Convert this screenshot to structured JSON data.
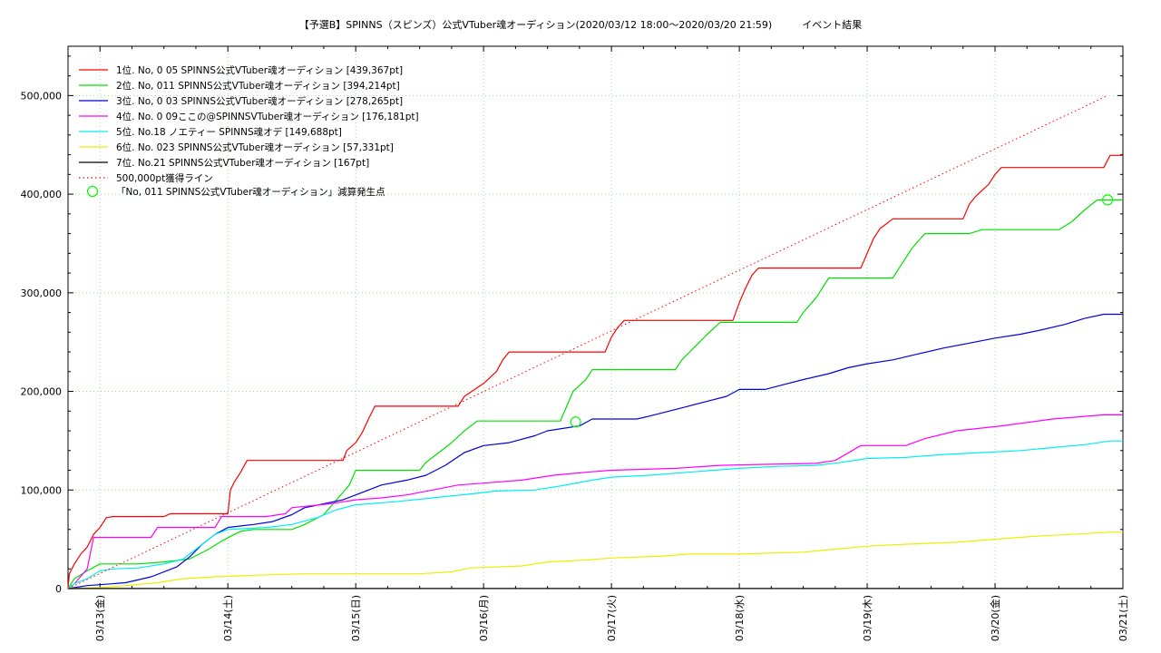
{
  "chart_data": {
    "type": "line",
    "title": "【予選B】SPINNS（スピンズ）公式VTuber魂オーディション(2020/03/12 18:00〜2020/03/20 21:59)　　　イベント結果",
    "xlabel": "",
    "ylabel": "",
    "x_ticks": [
      "03/13(金)",
      "03/14(土)",
      "03/15(日)",
      "03/16(月)",
      "03/17(火)",
      "03/18(水)",
      "03/19(木)",
      "03/20(金)",
      "03/21(土)"
    ],
    "y_ticks": [
      "0",
      "100,000",
      "200,000",
      "300,000",
      "400,000",
      "500,000"
    ],
    "x_range_days": [
      -0.25,
      8.0
    ],
    "ylim": [
      0,
      550000
    ],
    "grid": true,
    "legend_position": "top-left",
    "series": [
      {
        "name": "1位. No, 0 05 SPINNS公式VTuber魂オーディション [439,367pt]",
        "color": "#ff0000",
        "points": [
          [
            -0.25,
            0
          ],
          [
            -0.24,
            15000
          ],
          [
            -0.2,
            25000
          ],
          [
            -0.15,
            35000
          ],
          [
            -0.1,
            42000
          ],
          [
            -0.05,
            55000
          ],
          [
            0.0,
            62000
          ],
          [
            0.05,
            72000
          ],
          [
            0.1,
            73000
          ],
          [
            0.5,
            73000
          ],
          [
            0.55,
            76000
          ],
          [
            1.0,
            76000
          ],
          [
            1.02,
            100000
          ],
          [
            1.05,
            108000
          ],
          [
            1.1,
            118000
          ],
          [
            1.15,
            130000
          ],
          [
            1.5,
            130000
          ],
          [
            1.9,
            130000
          ],
          [
            1.93,
            140000
          ],
          [
            2.0,
            148000
          ],
          [
            2.05,
            158000
          ],
          [
            2.1,
            172000
          ],
          [
            2.15,
            185000
          ],
          [
            2.5,
            185000
          ],
          [
            2.8,
            185000
          ],
          [
            2.85,
            195000
          ],
          [
            3.0,
            208000
          ],
          [
            3.1,
            220000
          ],
          [
            3.15,
            232000
          ],
          [
            3.2,
            240000
          ],
          [
            3.6,
            240000
          ],
          [
            3.95,
            240000
          ],
          [
            4.0,
            255000
          ],
          [
            4.05,
            265000
          ],
          [
            4.1,
            272000
          ],
          [
            4.5,
            272000
          ],
          [
            4.95,
            272000
          ],
          [
            5.0,
            290000
          ],
          [
            5.05,
            305000
          ],
          [
            5.1,
            318000
          ],
          [
            5.15,
            325000
          ],
          [
            5.5,
            325000
          ],
          [
            5.95,
            325000
          ],
          [
            6.0,
            340000
          ],
          [
            6.05,
            355000
          ],
          [
            6.1,
            365000
          ],
          [
            6.2,
            375000
          ],
          [
            6.5,
            375000
          ],
          [
            6.75,
            375000
          ],
          [
            6.8,
            390000
          ],
          [
            6.85,
            398000
          ],
          [
            6.95,
            410000
          ],
          [
            7.0,
            420000
          ],
          [
            7.05,
            427000
          ],
          [
            7.5,
            427000
          ],
          [
            7.85,
            427000
          ],
          [
            7.9,
            439367
          ],
          [
            8.0,
            439367
          ]
        ]
      },
      {
        "name": "2位. No, 011 SPINNS公式VTuber魂オーディション [394,214pt]",
        "color": "#00e000",
        "points": [
          [
            -0.25,
            0
          ],
          [
            -0.2,
            10000
          ],
          [
            -0.1,
            18000
          ],
          [
            0.0,
            25000
          ],
          [
            0.3,
            25000
          ],
          [
            0.5,
            27000
          ],
          [
            0.7,
            30000
          ],
          [
            0.85,
            40000
          ],
          [
            0.95,
            48000
          ],
          [
            1.05,
            55000
          ],
          [
            1.1,
            58000
          ],
          [
            1.2,
            60000
          ],
          [
            1.5,
            60000
          ],
          [
            1.6,
            65000
          ],
          [
            1.75,
            75000
          ],
          [
            1.85,
            90000
          ],
          [
            1.95,
            105000
          ],
          [
            2.0,
            120000
          ],
          [
            2.4,
            120000
          ],
          [
            2.5,
            120000
          ],
          [
            2.55,
            128000
          ],
          [
            2.65,
            138000
          ],
          [
            2.75,
            148000
          ],
          [
            2.85,
            160000
          ],
          [
            2.95,
            170000
          ],
          [
            3.3,
            170000
          ],
          [
            3.6,
            170000
          ],
          [
            3.65,
            185000
          ],
          [
            3.7,
            200000
          ],
          [
            3.8,
            212000
          ],
          [
            3.85,
            222000
          ],
          [
            4.2,
            222000
          ],
          [
            4.5,
            222000
          ],
          [
            4.55,
            232000
          ],
          [
            4.65,
            245000
          ],
          [
            4.75,
            258000
          ],
          [
            4.85,
            270000
          ],
          [
            5.2,
            270000
          ],
          [
            5.45,
            270000
          ],
          [
            5.5,
            280000
          ],
          [
            5.6,
            295000
          ],
          [
            5.7,
            315000
          ],
          [
            6.0,
            315000
          ],
          [
            6.2,
            315000
          ],
          [
            6.25,
            325000
          ],
          [
            6.35,
            345000
          ],
          [
            6.45,
            360000
          ],
          [
            6.8,
            360000
          ],
          [
            6.9,
            364000
          ],
          [
            7.3,
            364000
          ],
          [
            7.5,
            364000
          ],
          [
            7.6,
            372000
          ],
          [
            7.7,
            384000
          ],
          [
            7.8,
            394214
          ],
          [
            8.0,
            394214
          ]
        ]
      },
      {
        "name": "3位. No, 0 03 SPINNS公式VTuber魂オーディション [278,265pt]",
        "color": "#0000dd",
        "points": [
          [
            -0.25,
            0
          ],
          [
            -0.1,
            3000
          ],
          [
            0.0,
            4000
          ],
          [
            0.2,
            6000
          ],
          [
            0.4,
            12000
          ],
          [
            0.6,
            22000
          ],
          [
            0.7,
            32000
          ],
          [
            0.8,
            45000
          ],
          [
            0.9,
            55000
          ],
          [
            1.0,
            62000
          ],
          [
            1.2,
            65000
          ],
          [
            1.35,
            68000
          ],
          [
            1.5,
            75000
          ],
          [
            1.6,
            82000
          ],
          [
            1.75,
            86000
          ],
          [
            1.9,
            90000
          ],
          [
            2.0,
            95000
          ],
          [
            2.1,
            100000
          ],
          [
            2.2,
            105000
          ],
          [
            2.4,
            110000
          ],
          [
            2.55,
            115000
          ],
          [
            2.7,
            125000
          ],
          [
            2.85,
            138000
          ],
          [
            3.0,
            145000
          ],
          [
            3.2,
            148000
          ],
          [
            3.4,
            155000
          ],
          [
            3.5,
            160000
          ],
          [
            3.75,
            165000
          ],
          [
            3.85,
            172000
          ],
          [
            4.1,
            172000
          ],
          [
            4.2,
            172000
          ],
          [
            4.3,
            175000
          ],
          [
            4.45,
            180000
          ],
          [
            4.6,
            185000
          ],
          [
            4.75,
            190000
          ],
          [
            4.9,
            195000
          ],
          [
            5.0,
            202000
          ],
          [
            5.2,
            202000
          ],
          [
            5.35,
            207000
          ],
          [
            5.5,
            212000
          ],
          [
            5.7,
            218000
          ],
          [
            5.85,
            224000
          ],
          [
            6.0,
            228000
          ],
          [
            6.2,
            232000
          ],
          [
            6.4,
            238000
          ],
          [
            6.6,
            244000
          ],
          [
            6.8,
            249000
          ],
          [
            7.0,
            254000
          ],
          [
            7.2,
            258000
          ],
          [
            7.35,
            262000
          ],
          [
            7.55,
            268000
          ],
          [
            7.7,
            274000
          ],
          [
            7.85,
            278265
          ],
          [
            8.0,
            278265
          ]
        ]
      },
      {
        "name": "4位. No. 0 09ここの@SPINNSVTuber魂オーディション [176,181pt]",
        "color": "#ff00ff",
        "points": [
          [
            -0.25,
            0
          ],
          [
            -0.2,
            5000
          ],
          [
            -0.1,
            20000
          ],
          [
            -0.05,
            52000
          ],
          [
            0.2,
            52000
          ],
          [
            0.4,
            52000
          ],
          [
            0.45,
            62000
          ],
          [
            0.9,
            62000
          ],
          [
            0.95,
            73000
          ],
          [
            1.3,
            73000
          ],
          [
            1.45,
            76000
          ],
          [
            1.5,
            82000
          ],
          [
            1.8,
            86000
          ],
          [
            2.0,
            90000
          ],
          [
            2.2,
            92000
          ],
          [
            2.4,
            95000
          ],
          [
            2.6,
            100000
          ],
          [
            2.8,
            105000
          ],
          [
            3.0,
            107000
          ],
          [
            3.3,
            110000
          ],
          [
            3.55,
            115000
          ],
          [
            3.8,
            118000
          ],
          [
            4.0,
            120000
          ],
          [
            4.5,
            122000
          ],
          [
            4.85,
            125000
          ],
          [
            5.2,
            126000
          ],
          [
            5.6,
            127000
          ],
          [
            5.75,
            130000
          ],
          [
            5.95,
            145000
          ],
          [
            6.3,
            145000
          ],
          [
            6.45,
            152000
          ],
          [
            6.7,
            160000
          ],
          [
            7.05,
            165000
          ],
          [
            7.45,
            172000
          ],
          [
            7.85,
            176181
          ],
          [
            8.0,
            176181
          ]
        ]
      },
      {
        "name": "5位. No.18 ノエティー SPINNS魂オデ [149,688pt]",
        "color": "#00eeee",
        "points": [
          [
            -0.25,
            0
          ],
          [
            -0.2,
            5000
          ],
          [
            -0.1,
            10000
          ],
          [
            0.0,
            18000
          ],
          [
            0.1,
            20000
          ],
          [
            0.3,
            21000
          ],
          [
            0.5,
            25000
          ],
          [
            0.65,
            30000
          ],
          [
            0.8,
            45000
          ],
          [
            0.9,
            55000
          ],
          [
            1.0,
            60000
          ],
          [
            1.3,
            62000
          ],
          [
            1.5,
            65000
          ],
          [
            1.7,
            72000
          ],
          [
            1.85,
            80000
          ],
          [
            2.0,
            85000
          ],
          [
            2.3,
            88000
          ],
          [
            2.6,
            92000
          ],
          [
            2.9,
            96000
          ],
          [
            3.1,
            99000
          ],
          [
            3.4,
            100000
          ],
          [
            3.6,
            104000
          ],
          [
            3.85,
            110000
          ],
          [
            4.0,
            113000
          ],
          [
            4.3,
            115000
          ],
          [
            4.6,
            118000
          ],
          [
            4.8,
            120000
          ],
          [
            5.0,
            122000
          ],
          [
            5.3,
            124000
          ],
          [
            5.6,
            125000
          ],
          [
            5.8,
            128000
          ],
          [
            6.0,
            132000
          ],
          [
            6.3,
            133000
          ],
          [
            6.6,
            136000
          ],
          [
            6.9,
            138000
          ],
          [
            7.2,
            140000
          ],
          [
            7.45,
            143000
          ],
          [
            7.7,
            146000
          ],
          [
            7.9,
            149688
          ],
          [
            8.0,
            149688
          ]
        ]
      },
      {
        "name": "6位. No. 023 SPINNS公式VTuber魂オーディション [57,331pt]",
        "color": "#eeee00",
        "points": [
          [
            -0.25,
            0
          ],
          [
            0.0,
            1000
          ],
          [
            0.2,
            3000
          ],
          [
            0.45,
            6000
          ],
          [
            0.65,
            10000
          ],
          [
            0.9,
            12000
          ],
          [
            1.3,
            14000
          ],
          [
            1.6,
            15000
          ],
          [
            2.5,
            15000
          ],
          [
            2.75,
            17000
          ],
          [
            2.9,
            21000
          ],
          [
            3.3,
            23000
          ],
          [
            3.5,
            27000
          ],
          [
            3.8,
            29000
          ],
          [
            4.0,
            31000
          ],
          [
            4.4,
            33000
          ],
          [
            4.6,
            35000
          ],
          [
            5.0,
            35000
          ],
          [
            5.5,
            37000
          ],
          [
            5.75,
            40000
          ],
          [
            6.0,
            43000
          ],
          [
            6.3,
            45000
          ],
          [
            6.7,
            47000
          ],
          [
            7.0,
            50000
          ],
          [
            7.3,
            53000
          ],
          [
            7.6,
            55000
          ],
          [
            7.9,
            57331
          ],
          [
            8.0,
            57331
          ]
        ]
      },
      {
        "name": "7位. No.21 SPINNS公式VTuber魂オーディション [167pt]",
        "color": "#000000",
        "points": [
          [
            -0.25,
            0
          ],
          [
            -0.15,
            100
          ],
          [
            8.0,
            167
          ]
        ]
      },
      {
        "name": "500,000pt獲得ライン",
        "color": "#ff0000",
        "dashed": true,
        "points": [
          [
            -0.25,
            0
          ],
          [
            7.88,
            500000
          ]
        ]
      }
    ],
    "annotations": {
      "decrease_marker_label": "「No, 011 SPINNS公式VTuber魂オーディション」減算発生点",
      "decrease_marker_color": "#00ff00",
      "decrease_points": [
        [
          3.72,
          169000
        ],
        [
          7.88,
          394214
        ]
      ]
    }
  }
}
